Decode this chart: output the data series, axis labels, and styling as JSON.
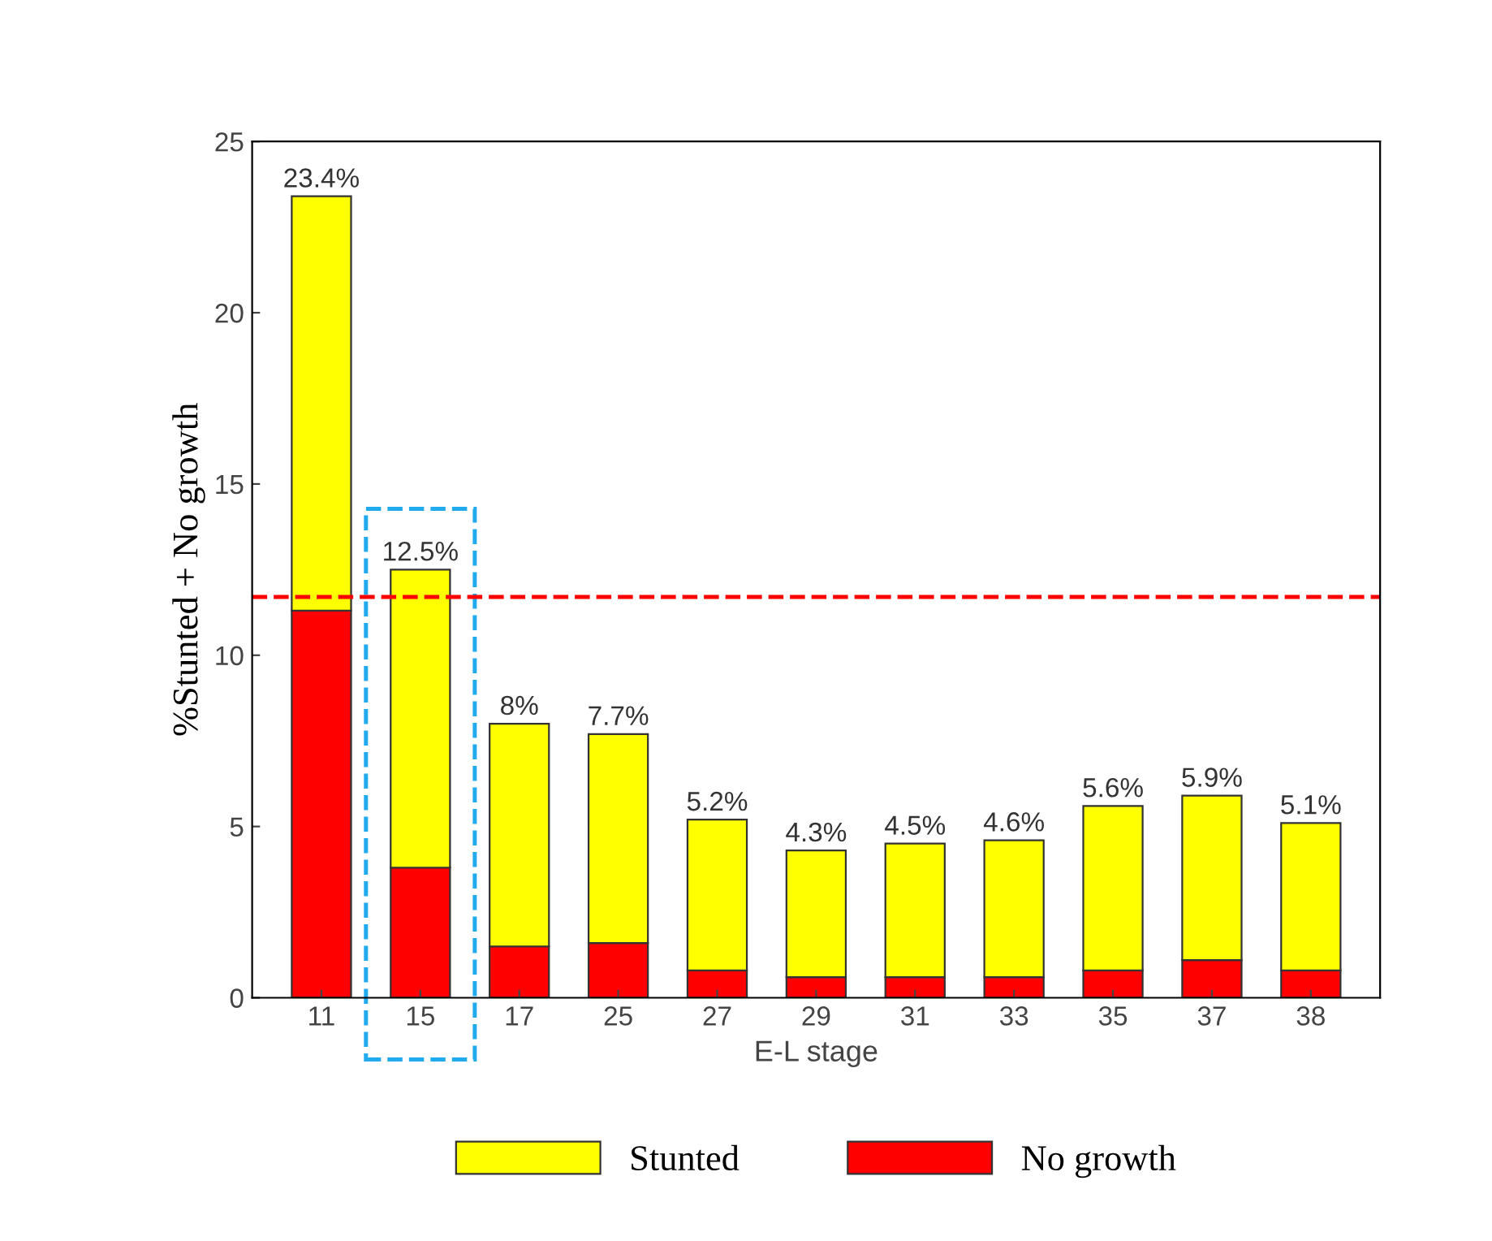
{
  "chart_data": {
    "type": "bar",
    "stacked": true,
    "xlabel": "E-L stage",
    "ylabel": "%Stunted + No growth",
    "categories": [
      "11",
      "15",
      "17",
      "25",
      "27",
      "29",
      "31",
      "33",
      "35",
      "37",
      "38"
    ],
    "series": [
      {
        "name": "No growth",
        "color": "#ff0000",
        "values": [
          11.3,
          3.8,
          1.5,
          1.6,
          0.8,
          0.6,
          0.6,
          0.6,
          0.8,
          1.1,
          0.8
        ]
      },
      {
        "name": "Stunted",
        "color": "#ffff00",
        "values": [
          12.1,
          8.7,
          6.5,
          6.1,
          4.4,
          3.7,
          3.9,
          4.0,
          4.8,
          4.8,
          4.3
        ]
      }
    ],
    "totals": [
      "23.4%",
      "12.5%",
      "8%",
      "7.7%",
      "5.2%",
      "4.3%",
      "4.5%",
      "4.6%",
      "5.6%",
      "5.9%",
      "5.1%"
    ],
    "ylim": [
      0,
      25
    ],
    "yticks": [
      0,
      5,
      10,
      15,
      20,
      25
    ],
    "ref_lines": [
      {
        "axis": "y",
        "value": 11.7,
        "color": "#ff0000",
        "line_style": "dashed"
      }
    ],
    "grid": false,
    "legend": "bottom"
  }
}
